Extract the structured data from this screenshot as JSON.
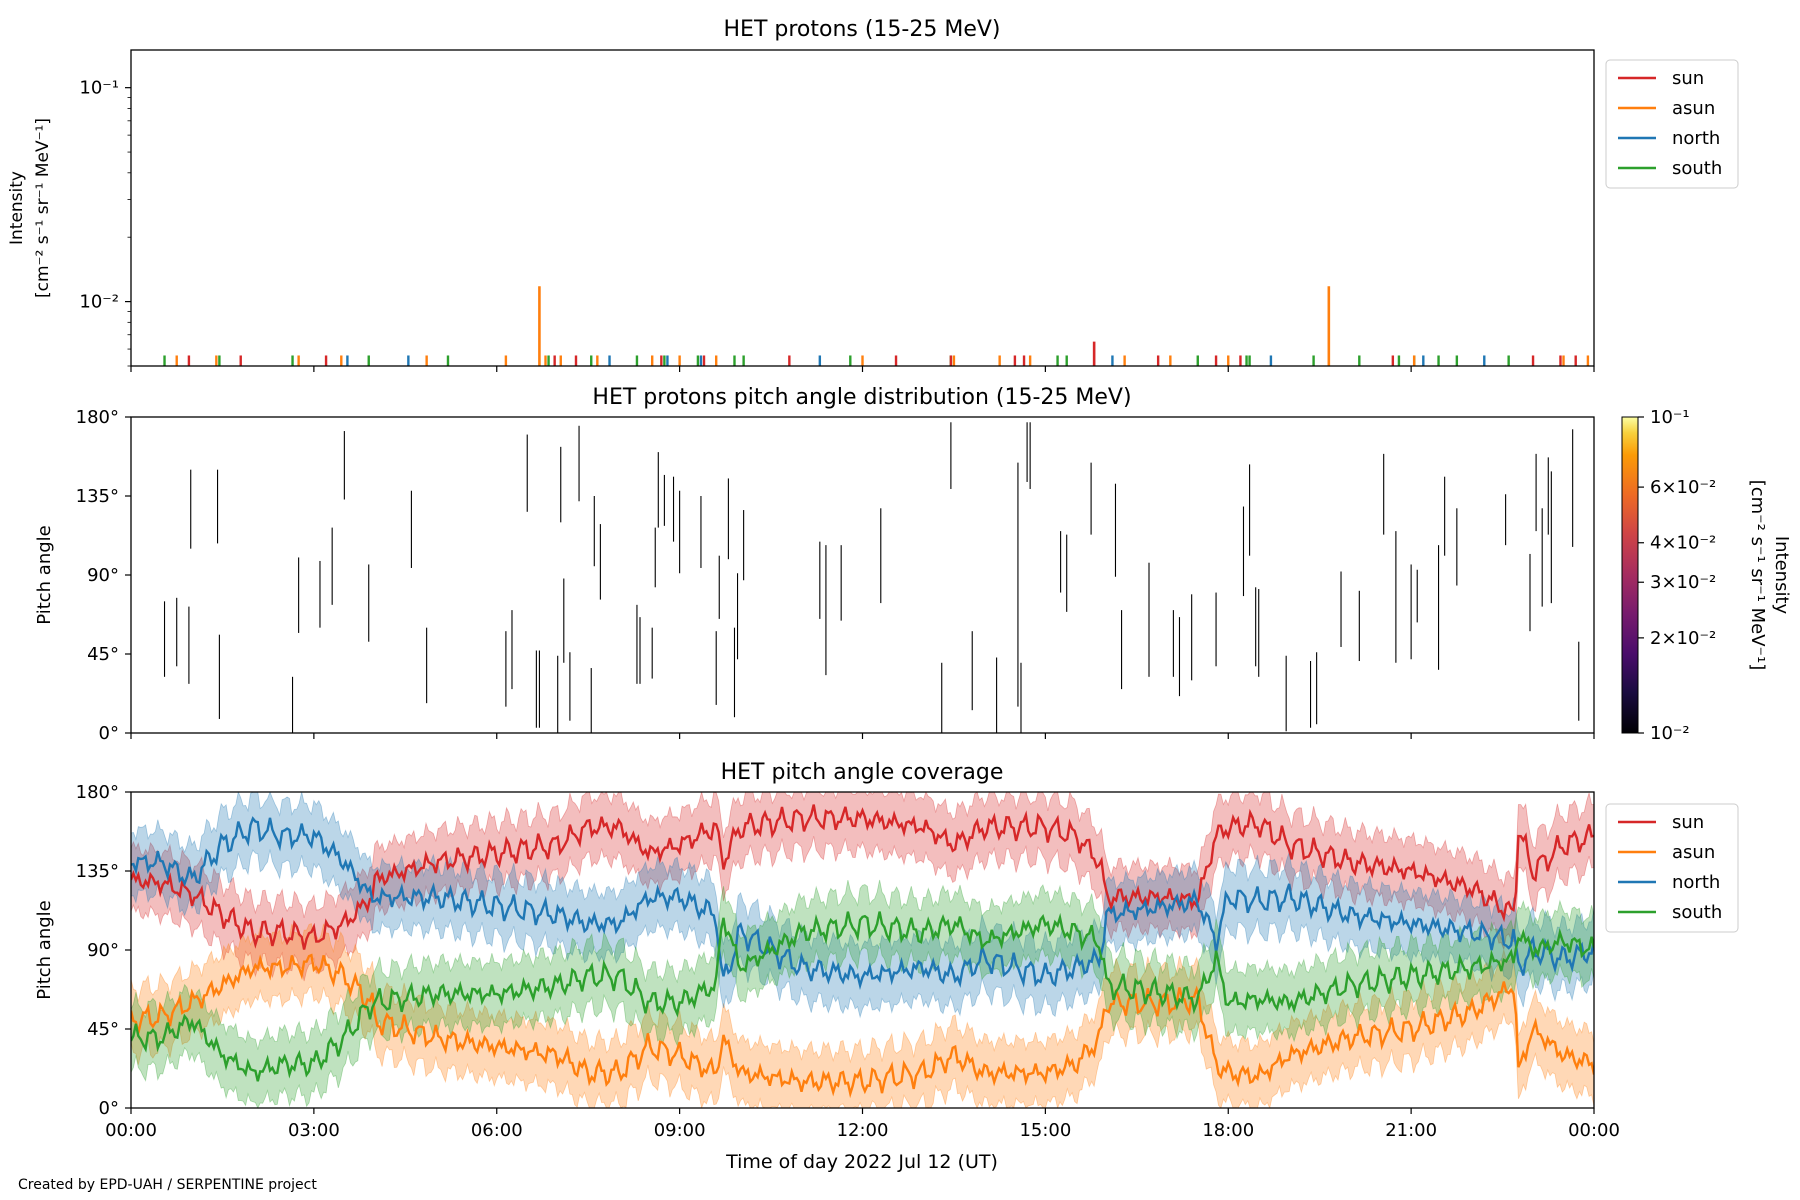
{
  "footer": {
    "credit": "Created by EPD-UAH / SERPENTINE project"
  },
  "colors": {
    "sun": "#d62728",
    "asun": "#ff7f0e",
    "north": "#1f77b4",
    "south": "#2ca02c",
    "frame": "#000000"
  },
  "chart_data": [
    {
      "id": "intensity",
      "type": "line",
      "title": "HET protons (15-25 MeV)",
      "ylabel_line1": "Intensity",
      "ylabel_line2": "[cm⁻² s⁻¹ sr⁻¹ MeV⁻¹]",
      "yscale": "log",
      "ylim": [
        0.005,
        0.15
      ],
      "yticks": [
        {
          "value": 0.01,
          "label": "10⁻²"
        },
        {
          "value": 0.1,
          "label": "10⁻¹"
        }
      ],
      "xlim_hours": [
        0,
        24
      ],
      "legend": [
        "sun",
        "asun",
        "north",
        "south"
      ],
      "legend_position": "outside-top-right",
      "baseline": 0.005,
      "spikes": [
        {
          "series": "south",
          "hours": [
            0.55,
            1.45,
            2.65,
            3.9,
            5.2,
            6.85,
            7.55,
            8.3,
            8.75,
            9.3,
            9.9,
            10.05,
            11.8,
            13.45,
            15.2,
            15.35,
            17.5,
            18.3,
            18.35,
            19.4,
            20.15,
            20.8,
            21.05,
            21.45,
            21.75,
            22.6
          ]
        },
        {
          "series": "sun",
          "hours": [
            0.95,
            1.8,
            3.2,
            6.95,
            7.3,
            8.7,
            9.4,
            10.8,
            12.55,
            13.45,
            14.5,
            14.65,
            16.85,
            17.8,
            18.2,
            20.7,
            23.0,
            23.45,
            23.7
          ]
        },
        {
          "series": "asun",
          "hours": [
            0.75,
            1.4,
            2.75,
            3.45,
            4.85,
            6.15,
            6.8,
            7.05,
            7.65,
            8.55,
            9.0,
            9.6,
            12.0,
            13.5,
            14.25,
            14.75,
            16.3,
            17.05,
            18.0,
            21.05,
            23.5,
            23.9
          ]
        },
        {
          "series": "north",
          "hours": [
            3.55,
            4.55,
            7.85,
            8.8,
            9.35,
            11.3,
            16.1,
            18.7,
            21.2,
            22.2
          ]
        }
      ],
      "peaks": [
        {
          "series": "asun",
          "hour": 6.7,
          "value": 0.0118
        },
        {
          "series": "asun",
          "hour": 19.65,
          "value": 0.0118
        },
        {
          "series": "sun",
          "hour": 15.8,
          "value": 0.0065
        }
      ]
    },
    {
      "id": "pad",
      "type": "heatmap",
      "title": "HET protons pitch angle distribution (15-25 MeV)",
      "ylabel": "Pitch angle",
      "ylim": [
        0,
        180
      ],
      "yticks": [
        {
          "value": 0,
          "label": "0°"
        },
        {
          "value": 45,
          "label": "45°"
        },
        {
          "value": 90,
          "label": "90°"
        },
        {
          "value": 135,
          "label": "135°"
        },
        {
          "value": 180,
          "label": "180°"
        }
      ],
      "xlim_hours": [
        0,
        24
      ],
      "colorbar": {
        "label": "Intensity\n[cm⁻² s⁻¹ sr⁻¹ MeV⁻¹]",
        "scale": "log",
        "range": [
          0.01,
          0.1
        ],
        "ticks": [
          {
            "value": 0.01,
            "label": "10⁻²"
          },
          {
            "value": 0.02,
            "label": "2×10⁻²"
          },
          {
            "value": 0.03,
            "label": "3×10⁻²"
          },
          {
            "value": 0.04,
            "label": "4×10⁻²"
          },
          {
            "value": 0.06,
            "label": "6×10⁻²"
          },
          {
            "value": 0.1,
            "label": "10⁻¹"
          }
        ],
        "colormap": "inferno"
      },
      "segments": [
        [
          0.55,
          32,
          75
        ],
        [
          0.75,
          38,
          77
        ],
        [
          0.95,
          28,
          72
        ],
        [
          0.98,
          105,
          150
        ],
        [
          1.45,
          8,
          56
        ],
        [
          1.42,
          108,
          150
        ],
        [
          2.65,
          0,
          32
        ],
        [
          2.75,
          57,
          100
        ],
        [
          3.1,
          60,
          98
        ],
        [
          3.3,
          73,
          117
        ],
        [
          3.5,
          133,
          172
        ],
        [
          3.9,
          52,
          96
        ],
        [
          4.6,
          94,
          138
        ],
        [
          4.85,
          17,
          60
        ],
        [
          6.15,
          15,
          58
        ],
        [
          6.25,
          25,
          70
        ],
        [
          6.5,
          126,
          170
        ],
        [
          6.65,
          3,
          47
        ],
        [
          6.7,
          3,
          47
        ],
        [
          7.0,
          0,
          44
        ],
        [
          7.05,
          120,
          163
        ],
        [
          7.1,
          40,
          88
        ],
        [
          7.2,
          7,
          46
        ],
        [
          7.35,
          132,
          175
        ],
        [
          7.55,
          0,
          37
        ],
        [
          7.6,
          95,
          135
        ],
        [
          7.7,
          76,
          119
        ],
        [
          8.3,
          28,
          73
        ],
        [
          8.35,
          28,
          66
        ],
        [
          8.55,
          31,
          60
        ],
        [
          8.6,
          83,
          117
        ],
        [
          8.65,
          117,
          160
        ],
        [
          8.75,
          118,
          147
        ],
        [
          8.9,
          109,
          146
        ],
        [
          9.0,
          91,
          138
        ],
        [
          9.35,
          94,
          135
        ],
        [
          9.6,
          16,
          58
        ],
        [
          9.65,
          65,
          101
        ],
        [
          9.8,
          99,
          145
        ],
        [
          9.9,
          9,
          60
        ],
        [
          9.95,
          42,
          91
        ],
        [
          10.05,
          87,
          127
        ],
        [
          11.3,
          65,
          109
        ],
        [
          11.4,
          33,
          107
        ],
        [
          11.65,
          64,
          107
        ],
        [
          12.3,
          74,
          128
        ],
        [
          13.3,
          0,
          40
        ],
        [
          13.45,
          139,
          177
        ],
        [
          13.8,
          13,
          58
        ],
        [
          14.2,
          0,
          43
        ],
        [
          14.55,
          15,
          154
        ],
        [
          14.6,
          0,
          40
        ],
        [
          14.7,
          143,
          177
        ],
        [
          14.75,
          139,
          177
        ],
        [
          15.25,
          80,
          115
        ],
        [
          15.35,
          69,
          113
        ],
        [
          15.75,
          113,
          154
        ],
        [
          16.15,
          89,
          142
        ],
        [
          16.25,
          25,
          70
        ],
        [
          16.7,
          32,
          97
        ],
        [
          17.1,
          32,
          70
        ],
        [
          17.2,
          21,
          66
        ],
        [
          17.4,
          30,
          79
        ],
        [
          17.8,
          38,
          80
        ],
        [
          18.25,
          78,
          129
        ],
        [
          18.35,
          101,
          153
        ],
        [
          18.45,
          38,
          83
        ],
        [
          18.5,
          32,
          82
        ],
        [
          18.95,
          1,
          44
        ],
        [
          19.35,
          3,
          41
        ],
        [
          19.45,
          5,
          46
        ],
        [
          19.85,
          49,
          92
        ],
        [
          20.15,
          41,
          81
        ],
        [
          20.55,
          113,
          159
        ],
        [
          20.75,
          40,
          115
        ],
        [
          21.0,
          42,
          96
        ],
        [
          21.1,
          63,
          93
        ],
        [
          21.45,
          36,
          107
        ],
        [
          21.55,
          101,
          146
        ],
        [
          21.75,
          84,
          128
        ],
        [
          22.55,
          107,
          136
        ],
        [
          22.95,
          58,
          102
        ],
        [
          23.05,
          115,
          159
        ],
        [
          23.15,
          72,
          128
        ],
        [
          23.25,
          113,
          157
        ],
        [
          23.3,
          74,
          149
        ],
        [
          23.65,
          106,
          173
        ],
        [
          23.75,
          7,
          52
        ]
      ]
    },
    {
      "id": "coverage",
      "type": "area",
      "title": "HET pitch angle coverage",
      "ylabel": "Pitch angle",
      "ylim": [
        0,
        180
      ],
      "yticks": [
        {
          "value": 0,
          "label": "0°"
        },
        {
          "value": 45,
          "label": "45°"
        },
        {
          "value": 90,
          "label": "90°"
        },
        {
          "value": 135,
          "label": "135°"
        },
        {
          "value": 180,
          "label": "180°"
        }
      ],
      "xlabel": "Time of day 2022 Jul 12 (UT)",
      "xlim_hours": [
        0,
        24
      ],
      "xticks": [
        {
          "hour": 0,
          "label": "00:00"
        },
        {
          "hour": 3,
          "label": "03:00"
        },
        {
          "hour": 6,
          "label": "06:00"
        },
        {
          "hour": 9,
          "label": "09:00"
        },
        {
          "hour": 12,
          "label": "12:00"
        },
        {
          "hour": 15,
          "label": "15:00"
        },
        {
          "hour": 18,
          "label": "18:00"
        },
        {
          "hour": 21,
          "label": "21:00"
        },
        {
          "hour": 24,
          "label": "00:00"
        }
      ],
      "legend": [
        "sun",
        "asun",
        "north",
        "south"
      ],
      "legend_position": "outside-top-right",
      "band_halfwidth_deg": 18,
      "series": [
        {
          "name": "sun",
          "hours": [
            0,
            0.5,
            1,
            1.5,
            2,
            2.5,
            3,
            3.5,
            3.95,
            4.0,
            5,
            6,
            7,
            7.5,
            8,
            8.5,
            9,
            9.6,
            9.7,
            10,
            11,
            12,
            13,
            13.5,
            14,
            15,
            15.5,
            15.9,
            16.0,
            17,
            17.5,
            17.8,
            18.0,
            18.5,
            19,
            20,
            21,
            22,
            22.7,
            22.75,
            23,
            23.5,
            24
          ],
          "values": [
            130,
            128,
            122,
            110,
            100,
            100,
            97,
            105,
            120,
            130,
            140,
            145,
            150,
            160,
            160,
            145,
            150,
            160,
            140,
            160,
            165,
            165,
            160,
            150,
            160,
            160,
            155,
            140,
            120,
            120,
            118,
            155,
            160,
            162,
            150,
            140,
            135,
            125,
            110,
            160,
            135,
            150,
            155
          ]
        },
        {
          "name": "asun",
          "hours": [
            0,
            0.5,
            1,
            1.5,
            2,
            2.5,
            3,
            3.5,
            3.95,
            4.0,
            5,
            6,
            7,
            7.5,
            8,
            8.5,
            9,
            9.6,
            9.7,
            10,
            11,
            12,
            13,
            13.5,
            14,
            15,
            15.5,
            15.9,
            16.0,
            17,
            17.5,
            17.8,
            18.0,
            18.5,
            19,
            20,
            21,
            22,
            22.7,
            22.75,
            23,
            23.5,
            24
          ],
          "values": [
            50,
            52,
            60,
            70,
            80,
            80,
            83,
            75,
            60,
            50,
            40,
            35,
            30,
            20,
            20,
            35,
            30,
            20,
            40,
            20,
            15,
            15,
            20,
            30,
            20,
            20,
            25,
            40,
            60,
            60,
            62,
            25,
            20,
            18,
            30,
            40,
            45,
            55,
            70,
            20,
            45,
            30,
            25
          ]
        },
        {
          "name": "north",
          "hours": [
            0,
            0.5,
            1,
            1.5,
            2,
            2.5,
            3,
            3.5,
            3.95,
            4.0,
            5,
            6,
            7,
            7.5,
            8,
            8.5,
            9,
            9.6,
            9.7,
            10,
            11,
            12,
            13,
            13.5,
            14,
            15,
            15.5,
            15.9,
            16.0,
            17,
            17.5,
            17.8,
            18.0,
            18.5,
            19,
            20,
            21,
            22,
            22.7,
            22.75,
            23,
            23.5,
            24
          ],
          "values": [
            140,
            140,
            130,
            150,
            160,
            155,
            155,
            140,
            120,
            120,
            120,
            115,
            110,
            105,
            105,
            120,
            120,
            110,
            70,
            100,
            80,
            75,
            80,
            75,
            85,
            75,
            80,
            85,
            110,
            115,
            118,
            95,
            120,
            118,
            120,
            110,
            105,
            100,
            95,
            80,
            90,
            85,
            90
          ]
        },
        {
          "name": "south",
          "hours": [
            0,
            0.5,
            1,
            1.5,
            2,
            2.5,
            3,
            3.5,
            3.95,
            4.0,
            5,
            6,
            7,
            7.5,
            8,
            8.5,
            9,
            9.6,
            9.7,
            10,
            11,
            12,
            13,
            13.5,
            14,
            15,
            15.5,
            15.9,
            16.0,
            17,
            17.5,
            17.8,
            18.0,
            18.5,
            19,
            20,
            21,
            22,
            22.7,
            22.75,
            23,
            23.5,
            24
          ],
          "values": [
            40,
            40,
            50,
            30,
            20,
            25,
            25,
            40,
            60,
            60,
            65,
            65,
            70,
            75,
            75,
            60,
            60,
            70,
            110,
            80,
            100,
            105,
            100,
            105,
            95,
            105,
            100,
            95,
            70,
            65,
            62,
            85,
            60,
            62,
            60,
            70,
            75,
            80,
            85,
            100,
            90,
            95,
            90
          ]
        }
      ]
    }
  ]
}
